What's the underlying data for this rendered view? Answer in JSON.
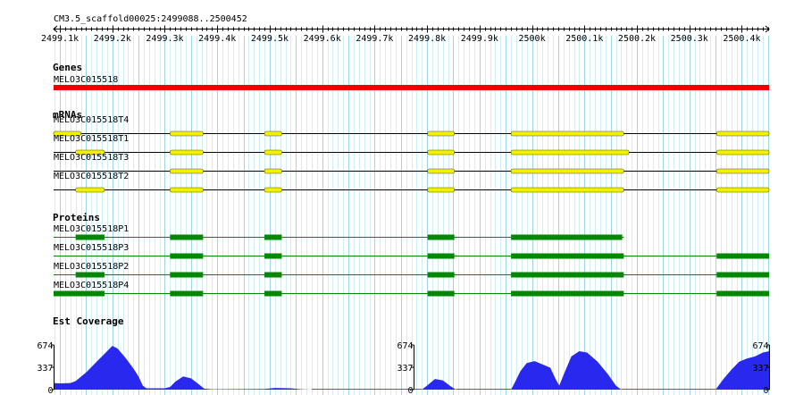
{
  "view": {
    "region_label": "CM3.5_scaffold00025:2499088..2500452",
    "start": 2499088,
    "end": 2500452,
    "ruler_ticks": [
      {
        "pos": 2499100,
        "label": "2499.1k"
      },
      {
        "pos": 2499200,
        "label": "2499.2k"
      },
      {
        "pos": 2499300,
        "label": "2499.3k"
      },
      {
        "pos": 2499400,
        "label": "2499.4k"
      },
      {
        "pos": 2499500,
        "label": "2499.5k"
      },
      {
        "pos": 2499600,
        "label": "2499.6k"
      },
      {
        "pos": 2499700,
        "label": "2499.7k"
      },
      {
        "pos": 2499800,
        "label": "2499.8k"
      },
      {
        "pos": 2499900,
        "label": "2499.9k"
      },
      {
        "pos": 2500000,
        "label": "2500k"
      },
      {
        "pos": 2500100,
        "label": "2500.1k"
      },
      {
        "pos": 2500200,
        "label": "2500.2k"
      },
      {
        "pos": 2500300,
        "label": "2500.3k"
      },
      {
        "pos": 2500400,
        "label": "2500.4k"
      }
    ]
  },
  "colors": {
    "grid_major": "#9ed6e6",
    "grid_minor": "#d2eef5",
    "gene": "#ee0000",
    "mrna_exon": "#f2f200",
    "mrna_border": "#555500",
    "protein": "#008800",
    "coverage_fill": "#2828ee",
    "coverage_zero": "#cc3333"
  },
  "tracks": {
    "genes": {
      "title": "Genes",
      "items": [
        {
          "name": "MELO3C015518",
          "start": 2499088,
          "end": 2500452
        }
      ]
    },
    "mrnas": {
      "title": "mRNAs",
      "items": [
        {
          "name": "MELO3C015518T4",
          "start": 2499088,
          "end": 2500452,
          "exons": [
            [
              2499088,
              2499140
            ],
            [
              2499310,
              2499373
            ],
            [
              2499490,
              2499523
            ],
            [
              2499801,
              2499852
            ],
            [
              2499960,
              2500175
            ],
            [
              2500352,
              2500452
            ]
          ]
        },
        {
          "name": "MELO3C015518T1",
          "start": 2499088,
          "end": 2500452,
          "exons": [
            [
              2499130,
              2499185
            ],
            [
              2499310,
              2499373
            ],
            [
              2499490,
              2499523
            ],
            [
              2499801,
              2499852
            ],
            [
              2499960,
              2500185
            ],
            [
              2500352,
              2500452
            ]
          ]
        },
        {
          "name": "MELO3C015518T3",
          "start": 2499088,
          "end": 2500452,
          "exons": [
            [
              2499310,
              2499373
            ],
            [
              2499490,
              2499523
            ],
            [
              2499801,
              2499852
            ],
            [
              2499960,
              2500175
            ],
            [
              2500352,
              2500452
            ]
          ]
        },
        {
          "name": "MELO3C015518T2",
          "start": 2499088,
          "end": 2500452,
          "exons": [
            [
              2499130,
              2499185
            ],
            [
              2499310,
              2499373
            ],
            [
              2499490,
              2499523
            ],
            [
              2499801,
              2499852
            ],
            [
              2499960,
              2500175
            ],
            [
              2500352,
              2500452
            ]
          ]
        }
      ]
    },
    "proteins": {
      "title": "Proteins",
      "items": [
        {
          "name": "MELO3C015518P1",
          "start": 2499088,
          "end": 2500175,
          "cds": [
            [
              2499130,
              2499185
            ],
            [
              2499310,
              2499373
            ],
            [
              2499490,
              2499523
            ],
            [
              2499801,
              2499852
            ],
            [
              2499960,
              2500172
            ]
          ]
        },
        {
          "name": "MELO3C015518P3",
          "start": 2499088,
          "end": 2500452,
          "cds": [
            [
              2499310,
              2499373
            ],
            [
              2499490,
              2499523
            ],
            [
              2499801,
              2499852
            ],
            [
              2499960,
              2500175
            ],
            [
              2500352,
              2500452
            ]
          ]
        },
        {
          "name": "MELO3C015518P2",
          "start": 2499088,
          "end": 2500452,
          "cds": [
            [
              2499130,
              2499185
            ],
            [
              2499310,
              2499373
            ],
            [
              2499490,
              2499523
            ],
            [
              2499801,
              2499852
            ],
            [
              2499960,
              2500175
            ],
            [
              2500352,
              2500452
            ]
          ]
        },
        {
          "name": "MELO3C015518P4",
          "start": 2499088,
          "end": 2500452,
          "cds": [
            [
              2499088,
              2499185
            ],
            [
              2499310,
              2499373
            ],
            [
              2499490,
              2499523
            ],
            [
              2499801,
              2499852
            ],
            [
              2499960,
              2500175
            ],
            [
              2500352,
              2500452
            ]
          ]
        }
      ]
    },
    "coverage": {
      "title": "Est Coverage",
      "scale_labels": [
        "674",
        "337",
        "0"
      ],
      "max": 674,
      "scale_positions": [
        2499088,
        2499775,
        2500452
      ],
      "points": [
        [
          2499088,
          100
        ],
        [
          2499100,
          95
        ],
        [
          2499120,
          100
        ],
        [
          2499130,
          130
        ],
        [
          2499150,
          260
        ],
        [
          2499170,
          420
        ],
        [
          2499190,
          580
        ],
        [
          2499200,
          660
        ],
        [
          2499210,
          620
        ],
        [
          2499225,
          480
        ],
        [
          2499240,
          320
        ],
        [
          2499250,
          200
        ],
        [
          2499258,
          60
        ],
        [
          2499265,
          20
        ],
        [
          2499300,
          20
        ],
        [
          2499310,
          40
        ],
        [
          2499320,
          120
        ],
        [
          2499335,
          200
        ],
        [
          2499350,
          170
        ],
        [
          2499365,
          80
        ],
        [
          2499375,
          15
        ],
        [
          2499390,
          5
        ],
        [
          2499490,
          10
        ],
        [
          2499510,
          25
        ],
        [
          2499540,
          20
        ],
        [
          2499560,
          5
        ],
        [
          2499580,
          0
        ],
        [
          2499790,
          0
        ],
        [
          2499800,
          60
        ],
        [
          2499815,
          160
        ],
        [
          2499830,
          140
        ],
        [
          2499845,
          50
        ],
        [
          2499855,
          0
        ],
        [
          2499960,
          0
        ],
        [
          2499968,
          120
        ],
        [
          2499978,
          280
        ],
        [
          2499990,
          400
        ],
        [
          2500005,
          430
        ],
        [
          2500020,
          380
        ],
        [
          2500035,
          330
        ],
        [
          2500045,
          160
        ],
        [
          2500052,
          60
        ],
        [
          2500060,
          220
        ],
        [
          2500075,
          500
        ],
        [
          2500090,
          580
        ],
        [
          2500105,
          560
        ],
        [
          2500125,
          420
        ],
        [
          2500145,
          230
        ],
        [
          2500160,
          60
        ],
        [
          2500170,
          0
        ],
        [
          2500300,
          0
        ],
        [
          2500350,
          0
        ],
        [
          2500365,
          160
        ],
        [
          2500380,
          300
        ],
        [
          2500395,
          420
        ],
        [
          2500410,
          470
        ],
        [
          2500425,
          500
        ],
        [
          2500440,
          560
        ],
        [
          2500452,
          580
        ]
      ]
    }
  }
}
